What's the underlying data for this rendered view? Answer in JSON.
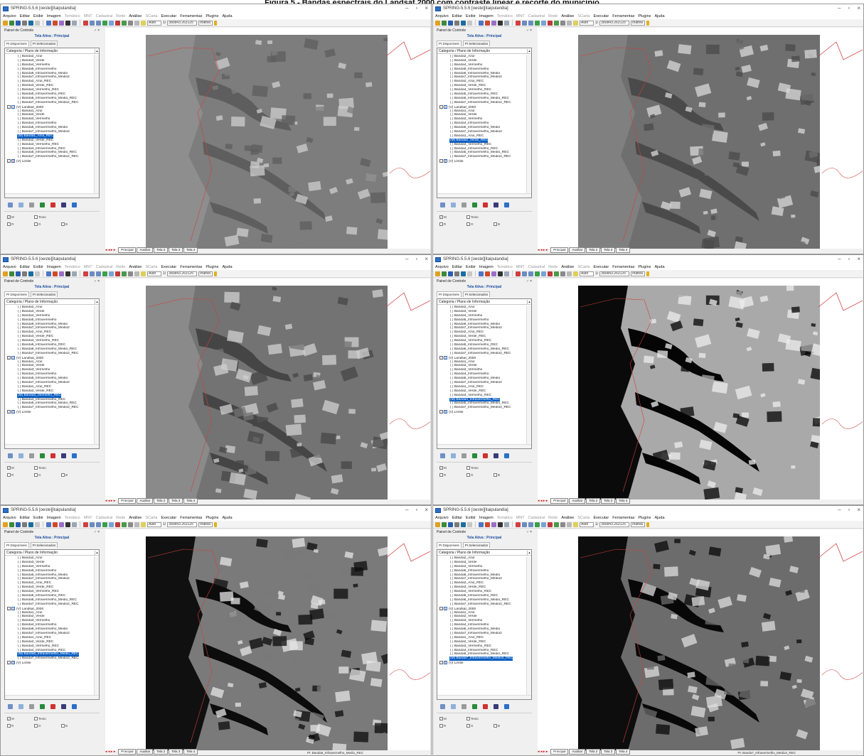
{
  "caption": "Figura 5 - Bandas espectrais do Landsat 2000 com contraste linear e recorte do município",
  "window": {
    "title": "SPRING-5.5.6 [oeste][itaipulandia]",
    "menu": [
      "Arquivo",
      "Editar",
      "Exibir",
      "Imagem",
      "Temático",
      "MNT",
      "Cadastral",
      "Rede",
      "Análise",
      "SCarta",
      "Executar",
      "Ferramentas",
      "Plugins",
      "Ajuda"
    ],
    "menu_dim": [
      "Temático",
      "MNT",
      "Cadastral",
      "Rede",
      "SCarta"
    ],
    "toolbar": {
      "zoom_mode": "Auto",
      "scale_prefix": "1/",
      "scale_value": "380843.263125",
      "state": "Inativa"
    },
    "panel": {
      "title": "Painel de Controle",
      "close": "♂ ×",
      "tela_ativa": "Tela Ativa : Principal",
      "tab_disponiveis": "PI Disponíveis",
      "tab_selecionados": "PI Selecionados",
      "tree_header": "Categoria / Plano de Informação",
      "rgb": {
        "m": "M",
        "texto": "Texto",
        "r": "R",
        "g": "G",
        "b": "B"
      }
    },
    "tabs": [
      "Principal",
      "Auxiliar",
      "Tela 2",
      "Tela 3",
      "Tela 4"
    ],
    "nav": "◂ ◂ ▸ ▸"
  },
  "layers_common": [
    "( ) Banda2_Azul",
    "( ) Banda3_Verde",
    "( ) Banda4_Vermelho",
    "( ) Banda5_Infravermelho",
    "( ) Banda6_Infravermelho_Medio",
    "( ) Banda7_Infravermelho_Medio2",
    "( ) Banda2_Azul_REC",
    "( ) Banda3_Verde_REC",
    "( ) Banda4_Vermelho_REC",
    "( ) Banda5_Infravermelho_REC",
    "( ) Banda6_Infravermelho_Medio_REC",
    "( ) Banda7_Infravermelho_Medio2_REC"
  ],
  "category_landsat": "(V) Landsat_2000",
  "category_limite": "(V) Limite",
  "windows": [
    {
      "layers": [
        "( ) Banda1_Azul",
        "( ) Banda2_Verde",
        "( ) Banda3_Vermelho",
        "( ) Banda4_Infravermelho",
        "( ) Banda5_Infravermelho_Medio",
        "( ) Banda7_Infravermelho_Medio2",
        "(M) Banda1_Azul_REC",
        "( ) Banda2_Verde_REC",
        "( ) Banda3_Vermelho_REC",
        "( ) Banda4_Infravermelho_REC",
        "( ) Banda5_Infravermelho_Medio_REC",
        "( ) Banda7_Infravermelho_Medio2_REC"
      ],
      "selected": 6,
      "status": ""
    },
    {
      "layers": [
        "( ) Banda1_Azul",
        "( ) Banda2_Verde",
        "( ) Banda3_Vermelho",
        "( ) Banda4_Infravermelho",
        "( ) Banda5_Infravermelho_Medio",
        "( ) Banda7_Infravermelho_Medio2",
        "( ) Banda1_Azul_REC",
        "(M) Banda2_Verde_REC",
        "( ) Banda3_Vermelho_REC",
        "( ) Banda4_Infravermelho_REC",
        "( ) Banda5_Infravermelho_Medio_REC",
        "( ) Banda7_Infravermelho_Medio2_REC"
      ],
      "selected": 7,
      "status": ""
    },
    {
      "layers": [
        "( ) Banda1_Azul",
        "( ) Banda2_Verde",
        "( ) Banda3_Vermelho",
        "( ) Banda4_Infravermelho",
        "( ) Banda5_Infravermelho_Medio",
        "( ) Banda7_Infravermelho_Medio2",
        "( ) Banda1_Azul_REC",
        "( ) Banda2_Verde_REC",
        "(M) Banda3_Vermelho_REC",
        "( ) Banda4_Infravermelho_REC",
        "( ) Banda5_Infravermelho_Medio_REC",
        "( ) Banda7_Infravermelho_Medio2_REC"
      ],
      "selected": 8,
      "status": ""
    },
    {
      "layers": [
        "( ) Banda1_Azul",
        "( ) Banda2_Verde",
        "( ) Banda3_Vermelho",
        "( ) Banda4_Infravermelho",
        "( ) Banda5_Infravermelho_Medio",
        "( ) Banda7_Infravermelho_Medio2",
        "( ) Banda1_Azul_REC",
        "( ) Banda2_Verde_REC",
        "( ) Banda3_Vermelho_REC",
        "(M) Banda4_Infravermelho_REC",
        "( ) Banda5_Infravermelho_Medio_REC",
        "( ) Banda7_Infravermelho_Medio2_REC"
      ],
      "selected": 9,
      "status": ""
    },
    {
      "layers": [
        "( ) Banda1_Azul",
        "( ) Banda2_Verde",
        "( ) Banda3_Vermelho",
        "( ) Banda4_Infravermelho",
        "( ) Banda5_Infravermelho_Medio",
        "( ) Banda7_Infravermelho_Medio2",
        "( ) Banda1_Azul_REC",
        "( ) Banda2_Verde_REC",
        "( ) Banda3_Vermelho_REC",
        "( ) Banda4_Infravermelho_REC",
        "(M) Banda5_Infravermelho_Medio_REC",
        "( ) Banda7_Infravermelho_Medio2_REC"
      ],
      "selected": 10,
      "status": "PI: Banda5_Infravermelho_Medio_REC"
    },
    {
      "layers": [
        "( ) Banda1_Azul",
        "( ) Banda2_Verde",
        "( ) Banda3_Vermelho",
        "( ) Banda4_Infravermelho",
        "( ) Banda5_Infravermelho_Medio",
        "( ) Banda7_Infravermelho_Medio2",
        "( ) Banda1_Azul_REC",
        "( ) Banda2_Verde_REC",
        "( ) Banda3_Vermelho_REC",
        "( ) Banda4_Infravermelho_REC",
        "( ) Banda5_Infravermelho_Medio_REC",
        "(M) Banda7_Infravermelho_Medio2_REC"
      ],
      "selected": 11,
      "status": "PI: Banda7_Infravermelho_Medio2_REC"
    }
  ],
  "colors": {
    "selection": "#0a5ec2",
    "boundary": "#d04040",
    "title_blue": "#1f4fa0"
  }
}
